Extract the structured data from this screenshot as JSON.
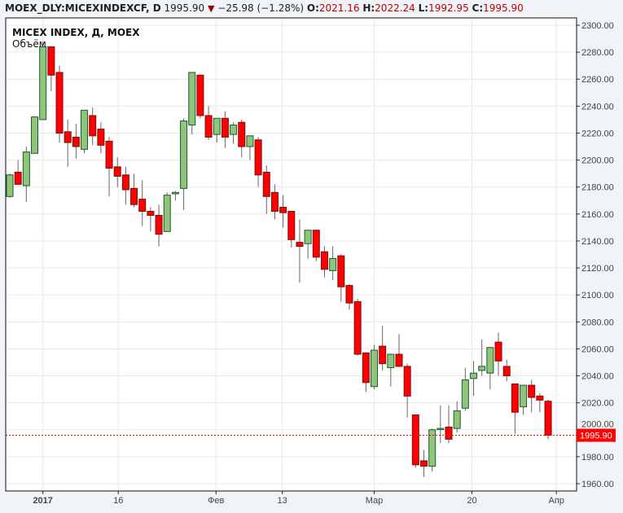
{
  "header": {
    "symbol": "MOEX_DLY:MICEXINDEXCF, D",
    "last": "1995.90",
    "change_icon": "down-triangle-icon",
    "change": "−25.98 (−1.28%)",
    "o_label": "O:",
    "o": "2021.16",
    "h_label": "H:",
    "h": "2022.24",
    "l_label": "L:",
    "l": "1992.95",
    "c_label": "C:",
    "c": "1995.90"
  },
  "legend": {
    "title": "MICEX INDEX, Д, MOEX",
    "volume": "Объём"
  },
  "colors": {
    "up": "#8fc47b",
    "up_border": "#1e5a2e",
    "down": "#ff0000",
    "down_border": "#7a0f0f",
    "wick": "#666666",
    "price_line": "#ff0000",
    "grid": "#e9e9e9"
  },
  "chart_data": {
    "type": "candlestick",
    "ylim": [
      1952,
      2305
    ],
    "yticks": [
      1960,
      1980,
      2000,
      2020,
      2040,
      2060,
      2080,
      2100,
      2120,
      2140,
      2160,
      2180,
      2200,
      2220,
      2240,
      2260,
      2280,
      2300
    ],
    "xticks": [
      {
        "label": "2017",
        "index": 4
      },
      {
        "label": "16",
        "index": 13.1
      },
      {
        "label": "Фев",
        "index": 24.9
      },
      {
        "label": "13",
        "index": 32.9
      },
      {
        "label": "Мар",
        "index": 44
      },
      {
        "label": "20",
        "index": 55.8
      },
      {
        "label": "Апр",
        "index": 66
      }
    ],
    "grid": true,
    "last_price": "1995.90",
    "ohlc": [
      [
        2173,
        2190,
        2172,
        2189
      ],
      [
        2191,
        2200,
        2182,
        2182
      ],
      [
        2181,
        2210,
        2169,
        2206
      ],
      [
        2205,
        2232,
        2205,
        2232
      ],
      [
        2230,
        2288,
        2230,
        2284
      ],
      [
        2284,
        2284,
        2251,
        2263
      ],
      [
        2265,
        2270,
        2213,
        2220
      ],
      [
        2221,
        2230,
        2195,
        2213
      ],
      [
        2217,
        2227,
        2201,
        2210
      ],
      [
        2208,
        2237,
        2205,
        2237
      ],
      [
        2233,
        2239,
        2211,
        2218
      ],
      [
        2223,
        2228,
        2205,
        2211
      ],
      [
        2214,
        2217,
        2173,
        2194
      ],
      [
        2195,
        2202,
        2180,
        2188
      ],
      [
        2189,
        2195,
        2167,
        2178
      ],
      [
        2179,
        2190,
        2165,
        2167
      ],
      [
        2171,
        2185,
        2151,
        2162
      ],
      [
        2162,
        2165,
        2147,
        2159
      ],
      [
        2159,
        2167,
        2136,
        2145
      ],
      [
        2147,
        2176,
        2147,
        2174
      ],
      [
        2175,
        2177,
        2170,
        2176
      ],
      [
        2179,
        2231,
        2163,
        2229
      ],
      [
        2226,
        2265,
        2219,
        2265
      ],
      [
        2263,
        2263,
        2231,
        2233
      ],
      [
        2233,
        2240,
        2215,
        2217
      ],
      [
        2219,
        2231,
        2213,
        2231
      ],
      [
        2231,
        2236,
        2209,
        2217
      ],
      [
        2219,
        2228,
        2212,
        2226
      ],
      [
        2228,
        2230,
        2202,
        2210
      ],
      [
        2210,
        2218,
        2200,
        2218
      ],
      [
        2215,
        2217,
        2180,
        2189
      ],
      [
        2191,
        2196,
        2160,
        2173
      ],
      [
        2176,
        2182,
        2156,
        2162
      ],
      [
        2165,
        2174,
        2150,
        2161
      ],
      [
        2162,
        2162,
        2135,
        2141
      ],
      [
        2139,
        2156,
        2109,
        2136
      ],
      [
        2138,
        2148,
        2127,
        2148
      ],
      [
        2148,
        2148,
        2125,
        2128
      ],
      [
        2132,
        2136,
        2113,
        2119
      ],
      [
        2118,
        2136,
        2111,
        2127
      ],
      [
        2129,
        2130,
        2095,
        2106
      ],
      [
        2107,
        2108,
        2089,
        2094
      ],
      [
        2095,
        2097,
        2055,
        2056
      ],
      [
        2057,
        2057,
        2028,
        2035
      ],
      [
        2032,
        2063,
        2030,
        2059
      ],
      [
        2062,
        2077,
        2044,
        2049
      ],
      [
        2046,
        2056,
        2032,
        2056
      ],
      [
        2056,
        2071,
        2047,
        2047
      ],
      [
        2047,
        2049,
        2009,
        2025
      ],
      [
        2011,
        2011,
        1972,
        1974
      ],
      [
        1977,
        1985,
        1965,
        1973
      ],
      [
        1973,
        2001,
        1969,
        2000
      ],
      [
        2001,
        2018,
        1990,
        2001
      ],
      [
        2002,
        2018,
        1990,
        1993
      ],
      [
        2001,
        2021,
        1998,
        2014
      ],
      [
        2016,
        2046,
        2014,
        2037
      ],
      [
        2038,
        2051,
        2025,
        2042
      ],
      [
        2044,
        2067,
        2040,
        2047
      ],
      [
        2042,
        2061,
        2030,
        2061
      ],
      [
        2065,
        2072,
        2040,
        2051
      ],
      [
        2047,
        2052,
        2036,
        2040
      ],
      [
        2034,
        2034,
        1997,
        2013
      ],
      [
        2017,
        2033,
        2011,
        2033
      ],
      [
        2033,
        2037,
        2013,
        2024
      ],
      [
        2025,
        2027,
        2013,
        2022
      ],
      [
        2021.16,
        2022.24,
        1992.95,
        1995.9
      ]
    ]
  }
}
